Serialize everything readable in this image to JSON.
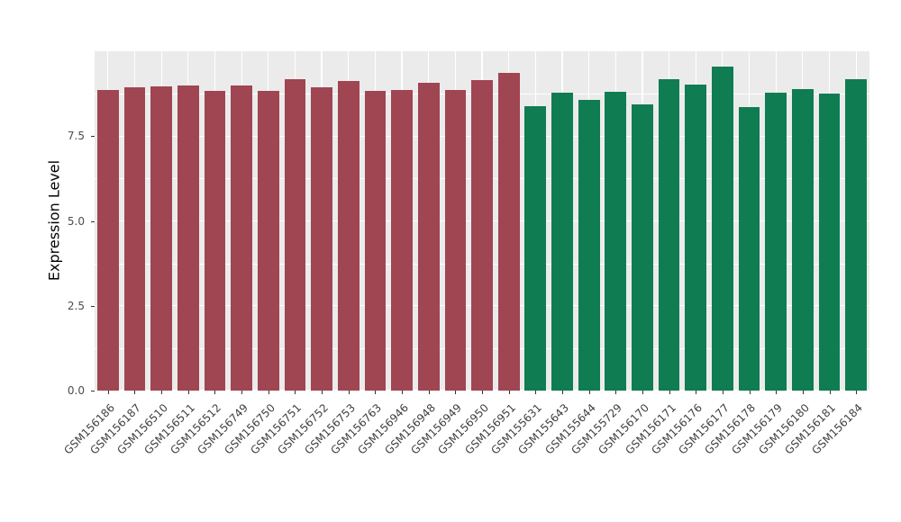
{
  "figure": {
    "ylabel": "Expression Level"
  },
  "chart_data": {
    "type": "bar",
    "title": "",
    "xlabel": "",
    "ylabel": "Expression Level",
    "ylim": [
      0,
      10
    ],
    "yticks": [
      0,
      2.5,
      5.0,
      7.5
    ],
    "ytick_labels": [
      "0.0",
      "2.5",
      "5.0",
      "7.5"
    ],
    "minor_yticks": [
      1.25,
      3.75,
      6.25,
      8.75
    ],
    "grid": true,
    "panel_background": "#EBEBEB",
    "grid_color": "#FFFFFF",
    "legend": "none",
    "categories": [
      "GSM156186",
      "GSM156187",
      "GSM156510",
      "GSM156511",
      "GSM156512",
      "GSM156749",
      "GSM156750",
      "GSM156751",
      "GSM156752",
      "GSM156753",
      "GSM156763",
      "GSM156946",
      "GSM156948",
      "GSM156949",
      "GSM156950",
      "GSM156951",
      "GSM155631",
      "GSM155643",
      "GSM155644",
      "GSM155729",
      "GSM156170",
      "GSM156171",
      "GSM156176",
      "GSM156177",
      "GSM156178",
      "GSM156179",
      "GSM156180",
      "GSM156181",
      "GSM156184"
    ],
    "values": [
      8.86,
      8.94,
      8.96,
      8.99,
      8.83,
      8.99,
      8.83,
      9.18,
      8.94,
      9.13,
      8.83,
      8.86,
      9.07,
      8.86,
      9.15,
      9.36,
      8.38,
      8.78,
      8.57,
      8.81,
      8.43,
      9.18,
      9.02,
      9.55,
      8.36,
      8.78,
      8.89,
      8.75,
      9.18
    ],
    "groups": [
      "A",
      "A",
      "A",
      "A",
      "A",
      "A",
      "A",
      "A",
      "A",
      "A",
      "A",
      "A",
      "A",
      "A",
      "A",
      "A",
      "B",
      "B",
      "B",
      "B",
      "B",
      "B",
      "B",
      "B",
      "B",
      "B",
      "B",
      "B",
      "B"
    ],
    "group_colors": {
      "A": "#A04552",
      "B": "#0F7C52"
    }
  }
}
